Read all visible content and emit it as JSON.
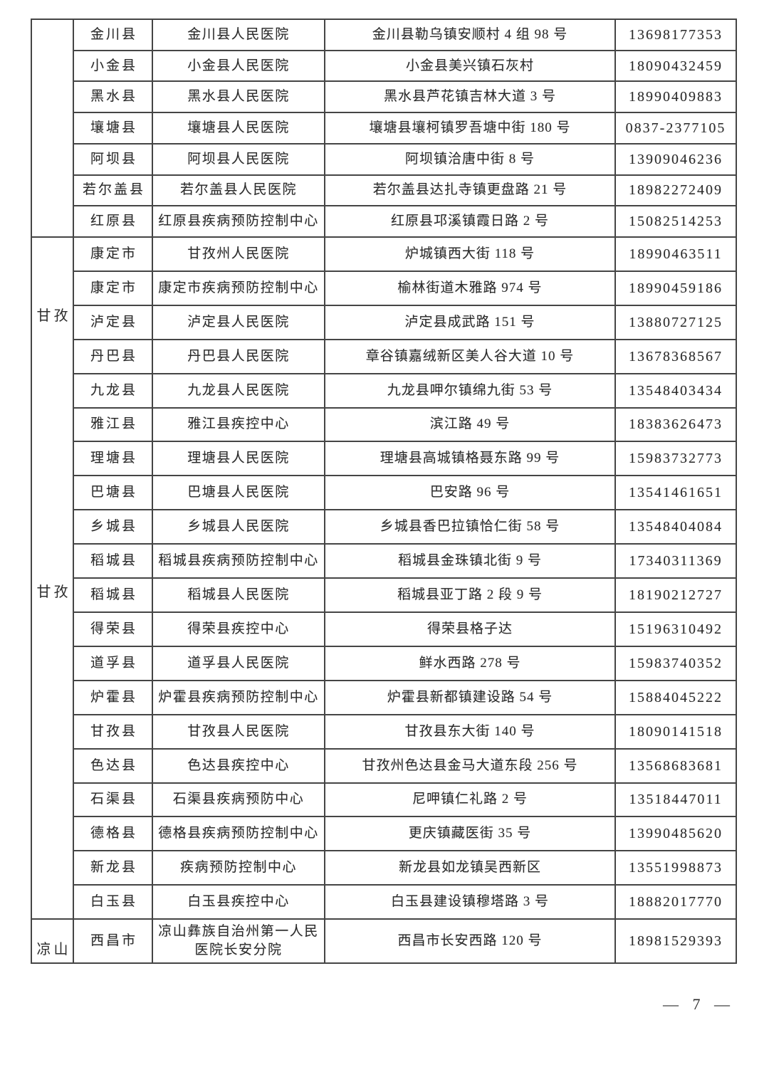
{
  "page": {
    "page_number": "— 7 —"
  },
  "table": {
    "sections": [
      {
        "prefecture_labels": [],
        "rows": [
          {
            "county": "金川县",
            "institution": "金川县人民医院",
            "address": "金川县勒乌镇安顺村 4 组 98 号",
            "phone": "13698177353"
          },
          {
            "county": "小金县",
            "institution": "小金县人民医院",
            "address": "小金县美兴镇石灰村",
            "phone": "18090432459"
          },
          {
            "county": "黑水县",
            "institution": "黑水县人民医院",
            "address": "黑水县芦花镇吉林大道 3 号",
            "phone": "18990409883"
          },
          {
            "county": "壤塘县",
            "institution": "壤塘县人民医院",
            "address": "壤塘县壤柯镇罗吾塘中街 180 号",
            "phone": "0837-2377105"
          },
          {
            "county": "阿坝县",
            "institution": "阿坝县人民医院",
            "address": "阿坝镇洽唐中街 8 号",
            "phone": "13909046236"
          },
          {
            "county": "若尔盖县",
            "institution": "若尔盖县人民医院",
            "address": "若尔盖县达扎寺镇更盘路 21 号",
            "phone": "18982272409"
          },
          {
            "county": "红原县",
            "institution": "红原县疾病预防控制中心",
            "address": "红原县邛溪镇霞日路 2 号",
            "phone": "15082514253"
          }
        ]
      },
      {
        "prefecture_labels": [
          "甘孜",
          "甘孜"
        ],
        "rows": [
          {
            "county": "康定市",
            "institution": "甘孜州人民医院",
            "address": "炉城镇西大街 118 号",
            "phone": "18990463511"
          },
          {
            "county": "康定市",
            "institution": "康定市疾病预防控制中心",
            "address": "榆林街道木雅路 974 号",
            "phone": "18990459186"
          },
          {
            "county": "泸定县",
            "institution": "泸定县人民医院",
            "address": "泸定县成武路 151 号",
            "phone": "13880727125"
          },
          {
            "county": "丹巴县",
            "institution": "丹巴县人民医院",
            "address": "章谷镇嘉绒新区美人谷大道 10 号",
            "phone": "13678368567"
          },
          {
            "county": "九龙县",
            "institution": "九龙县人民医院",
            "address": "九龙县呷尔镇绵九街 53 号",
            "phone": "13548403434"
          },
          {
            "county": "雅江县",
            "institution": "雅江县疾控中心",
            "address": "滨江路 49 号",
            "phone": "18383626473"
          },
          {
            "county": "理塘县",
            "institution": "理塘县人民医院",
            "address": "理塘县高城镇格聂东路 99 号",
            "phone": "15983732773"
          },
          {
            "county": "巴塘县",
            "institution": "巴塘县人民医院",
            "address": "巴安路 96 号",
            "phone": "13541461651"
          },
          {
            "county": "乡城县",
            "institution": "乡城县人民医院",
            "address": "乡城县香巴拉镇恰仁街 58 号",
            "phone": "13548404084"
          },
          {
            "county": "稻城县",
            "institution": "稻城县疾病预防控制中心",
            "address": "稻城县金珠镇北街 9 号",
            "phone": "17340311369"
          },
          {
            "county": "稻城县",
            "institution": "稻城县人民医院",
            "address": "稻城县亚丁路 2 段 9 号",
            "phone": "18190212727"
          },
          {
            "county": "得荣县",
            "institution": "得荣县疾控中心",
            "address": "得荣县格子达",
            "phone": "15196310492"
          },
          {
            "county": "道孚县",
            "institution": "道孚县人民医院",
            "address": "鲜水西路 278 号",
            "phone": "15983740352"
          },
          {
            "county": "炉霍县",
            "institution": "炉霍县疾病预防控制中心",
            "address": "炉霍县新都镇建设路 54 号",
            "phone": "15884045222"
          },
          {
            "county": "甘孜县",
            "institution": "甘孜县人民医院",
            "address": "甘孜县东大街 140 号",
            "phone": "18090141518"
          },
          {
            "county": "色达县",
            "institution": "色达县疾控中心",
            "address": "甘孜州色达县金马大道东段 256 号",
            "phone": "13568683681"
          },
          {
            "county": "石渠县",
            "institution": "石渠县疾病预防中心",
            "address": "尼呷镇仁礼路 2 号",
            "phone": "13518447011"
          },
          {
            "county": "德格县",
            "institution": "德格县疾病预防控制中心",
            "address": "更庆镇藏医街 35 号",
            "phone": "13990485620"
          },
          {
            "county": "新龙县",
            "institution": "疾病预防控制中心",
            "address": "新龙县如龙镇吴西新区",
            "phone": "13551998873"
          },
          {
            "county": "白玉县",
            "institution": "白玉县疾控中心",
            "address": "白玉县建设镇穆塔路 3 号",
            "phone": "18882017770"
          }
        ]
      },
      {
        "prefecture_labels": [
          "凉山"
        ],
        "rows": [
          {
            "county": "西昌市",
            "institution": "凉山彝族自治州第一人民医院长安分院",
            "address": "西昌市长安西路 120 号",
            "phone": "18981529393"
          }
        ]
      }
    ]
  }
}
